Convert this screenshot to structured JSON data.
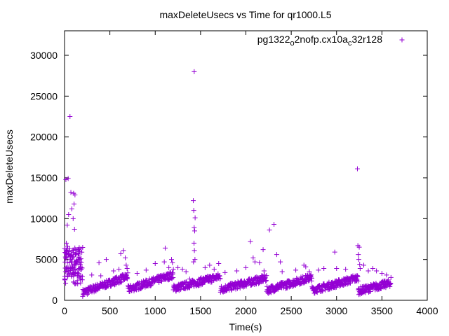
{
  "chart_data": {
    "type": "scatter",
    "title": "maxDeleteUsecs vs Time for qr1000.L5",
    "xlabel": "Time(s)",
    "ylabel": "maxDeleteUsecs",
    "xlim": [
      0,
      4000
    ],
    "ylim": [
      0,
      33000
    ],
    "xticks": [
      0,
      500,
      1000,
      1500,
      2000,
      2500,
      3000,
      3500,
      4000
    ],
    "yticks": [
      0,
      5000,
      10000,
      15000,
      20000,
      25000,
      30000
    ],
    "grid": false,
    "legend_position": "top-right",
    "marker": "+",
    "color": "#9400d3",
    "series": [
      {
        "name": "pg1322_o2nofp.cx10a_c32r128",
        "legend_parts": [
          "pg1322",
          "o",
          "2nofp.cx10a",
          "c",
          "32r128"
        ],
        "baseline_segments": [
          {
            "x_start": 200,
            "x_end": 700,
            "y_start": 800,
            "y_end": 2800
          },
          {
            "x_start": 700,
            "x_end": 1200,
            "y_start": 1200,
            "y_end": 3000
          },
          {
            "x_start": 1200,
            "x_end": 1720,
            "y_start": 1300,
            "y_end": 2800
          },
          {
            "x_start": 1720,
            "x_end": 2230,
            "y_start": 1200,
            "y_end": 2600
          },
          {
            "x_start": 2230,
            "x_end": 2730,
            "y_start": 1100,
            "y_end": 2700
          },
          {
            "x_start": 2730,
            "x_end": 3240,
            "y_start": 1100,
            "y_end": 2600
          },
          {
            "x_start": 3240,
            "x_end": 3600,
            "y_start": 1000,
            "y_end": 2000
          }
        ],
        "points": [
          [
            15,
            14800
          ],
          [
            40,
            14900
          ],
          [
            60,
            22500
          ],
          [
            70,
            13200
          ],
          [
            100,
            13100
          ],
          [
            115,
            12900
          ],
          [
            105,
            11800
          ],
          [
            80,
            11200
          ],
          [
            110,
            8700
          ],
          [
            95,
            10000
          ],
          [
            45,
            10500
          ],
          [
            30,
            9200
          ],
          [
            20,
            7000
          ],
          [
            35,
            6600
          ],
          [
            50,
            6000
          ],
          [
            55,
            5400
          ],
          [
            65,
            5000
          ],
          [
            75,
            4700
          ],
          [
            85,
            4300
          ],
          [
            90,
            4000
          ],
          [
            25,
            4000
          ],
          [
            10,
            3500
          ],
          [
            5,
            2500
          ],
          [
            12,
            2100
          ],
          [
            40,
            3900
          ],
          [
            60,
            3300
          ],
          [
            80,
            3100
          ],
          [
            120,
            5600
          ],
          [
            130,
            4900
          ],
          [
            150,
            6200
          ],
          [
            160,
            5300
          ],
          [
            180,
            4000
          ],
          [
            170,
            4700
          ],
          [
            140,
            3400
          ],
          [
            380,
            4600
          ],
          [
            460,
            5000
          ],
          [
            620,
            5700
          ],
          [
            650,
            6100
          ],
          [
            670,
            5200
          ],
          [
            680,
            4300
          ],
          [
            690,
            3900
          ],
          [
            600,
            3800
          ],
          [
            540,
            3600
          ],
          [
            400,
            3000
          ],
          [
            300,
            3100
          ],
          [
            1000,
            4500
          ],
          [
            1100,
            4700
          ],
          [
            1110,
            6400
          ],
          [
            1150,
            4000
          ],
          [
            1180,
            5000
          ],
          [
            1190,
            4600
          ],
          [
            1200,
            3800
          ],
          [
            900,
            3700
          ],
          [
            800,
            3300
          ],
          [
            1250,
            4000
          ],
          [
            1300,
            3800
          ],
          [
            1340,
            3500
          ],
          [
            1380,
            2600
          ],
          [
            1430,
            28000
          ],
          [
            1420,
            12200
          ],
          [
            1425,
            11000
          ],
          [
            1440,
            10100
          ],
          [
            1430,
            8900
          ],
          [
            1435,
            8500
          ],
          [
            1428,
            7000
          ],
          [
            1432,
            6100
          ],
          [
            1438,
            5000
          ],
          [
            1422,
            4700
          ],
          [
            1550,
            4000
          ],
          [
            1600,
            4300
          ],
          [
            1700,
            4500
          ],
          [
            1650,
            3800
          ],
          [
            1770,
            3400
          ],
          [
            1900,
            3600
          ],
          [
            2000,
            4000
          ],
          [
            2050,
            7200
          ],
          [
            2080,
            5200
          ],
          [
            2100,
            4700
          ],
          [
            2150,
            4600
          ],
          [
            2190,
            6200
          ],
          [
            2200,
            3600
          ],
          [
            2260,
            8600
          ],
          [
            2310,
            9300
          ],
          [
            2340,
            5600
          ],
          [
            2380,
            4700
          ],
          [
            2400,
            3500
          ],
          [
            2550,
            3700
          ],
          [
            2640,
            4300
          ],
          [
            2660,
            4100
          ],
          [
            2700,
            3500
          ],
          [
            2800,
            3700
          ],
          [
            2860,
            3900
          ],
          [
            2980,
            5900
          ],
          [
            3000,
            3900
          ],
          [
            3100,
            3800
          ],
          [
            3180,
            3000
          ],
          [
            3230,
            16100
          ],
          [
            3235,
            6700
          ],
          [
            3250,
            6500
          ],
          [
            3240,
            5600
          ],
          [
            3245,
            5000
          ],
          [
            3255,
            4400
          ],
          [
            3260,
            3900
          ],
          [
            3300,
            4300
          ],
          [
            3350,
            3600
          ],
          [
            3400,
            3900
          ],
          [
            3440,
            3600
          ],
          [
            3500,
            3300
          ],
          [
            3550,
            3100
          ],
          [
            3600,
            2800
          ]
        ]
      }
    ]
  }
}
